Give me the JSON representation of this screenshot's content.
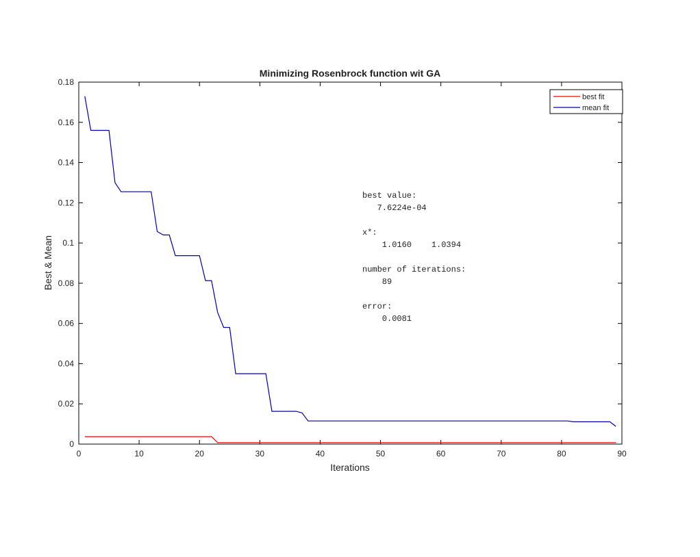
{
  "chart_data": {
    "type": "line",
    "title": "Minimizing Rosenbrock function wit GA",
    "xlabel": "Iterations",
    "ylabel": "Best & Mean",
    "xlim": [
      0,
      90
    ],
    "ylim": [
      0,
      0.18
    ],
    "xticks": [
      "0",
      "10",
      "20",
      "30",
      "40",
      "50",
      "60",
      "70",
      "80",
      "90"
    ],
    "yticks": [
      "0",
      "0.02",
      "0.04",
      "0.06",
      "0.08",
      "0.1",
      "0.12",
      "0.14",
      "0.16",
      "0.18"
    ],
    "grid": false,
    "legend_position": "top-right",
    "series": [
      {
        "name": "best fit",
        "color": "#ff0000",
        "points": [
          [
            1,
            0.0037
          ],
          [
            22,
            0.0037
          ],
          [
            23,
            0.0007
          ],
          [
            89,
            0.0007
          ]
        ]
      },
      {
        "name": "mean fit",
        "color": "#0000aa",
        "points": [
          [
            1,
            0.173
          ],
          [
            2,
            0.156
          ],
          [
            3,
            0.156
          ],
          [
            4,
            0.156
          ],
          [
            5,
            0.156
          ],
          [
            6,
            0.13
          ],
          [
            7,
            0.1255
          ],
          [
            8,
            0.1255
          ],
          [
            9,
            0.1255
          ],
          [
            10,
            0.1255
          ],
          [
            11,
            0.1255
          ],
          [
            12,
            0.1255
          ],
          [
            13,
            0.1057
          ],
          [
            14,
            0.104
          ],
          [
            15,
            0.104
          ],
          [
            16,
            0.0937
          ],
          [
            17,
            0.0937
          ],
          [
            18,
            0.0937
          ],
          [
            19,
            0.0937
          ],
          [
            20,
            0.0937
          ],
          [
            21,
            0.0813
          ],
          [
            22,
            0.0813
          ],
          [
            23,
            0.0655
          ],
          [
            24,
            0.058
          ],
          [
            25,
            0.058
          ],
          [
            26,
            0.035
          ],
          [
            27,
            0.035
          ],
          [
            28,
            0.035
          ],
          [
            29,
            0.035
          ],
          [
            30,
            0.035
          ],
          [
            31,
            0.035
          ],
          [
            32,
            0.0163
          ],
          [
            33,
            0.0163
          ],
          [
            34,
            0.0163
          ],
          [
            35,
            0.0163
          ],
          [
            36,
            0.0163
          ],
          [
            37,
            0.0155
          ],
          [
            38,
            0.0115
          ],
          [
            40,
            0.0115
          ],
          [
            50,
            0.0115
          ],
          [
            60,
            0.0115
          ],
          [
            70,
            0.0115
          ],
          [
            80,
            0.0115
          ],
          [
            81,
            0.0115
          ],
          [
            82,
            0.0111
          ],
          [
            86,
            0.0111
          ],
          [
            88,
            0.0111
          ],
          [
            89,
            0.0088
          ]
        ]
      }
    ],
    "annotation": {
      "lines": [
        "best value:",
        "   7.6224e-04",
        "",
        "x*:",
        "    1.0160    1.0394",
        "",
        "number of iterations:",
        "    89",
        "",
        "error:",
        "    0.0081"
      ]
    }
  }
}
